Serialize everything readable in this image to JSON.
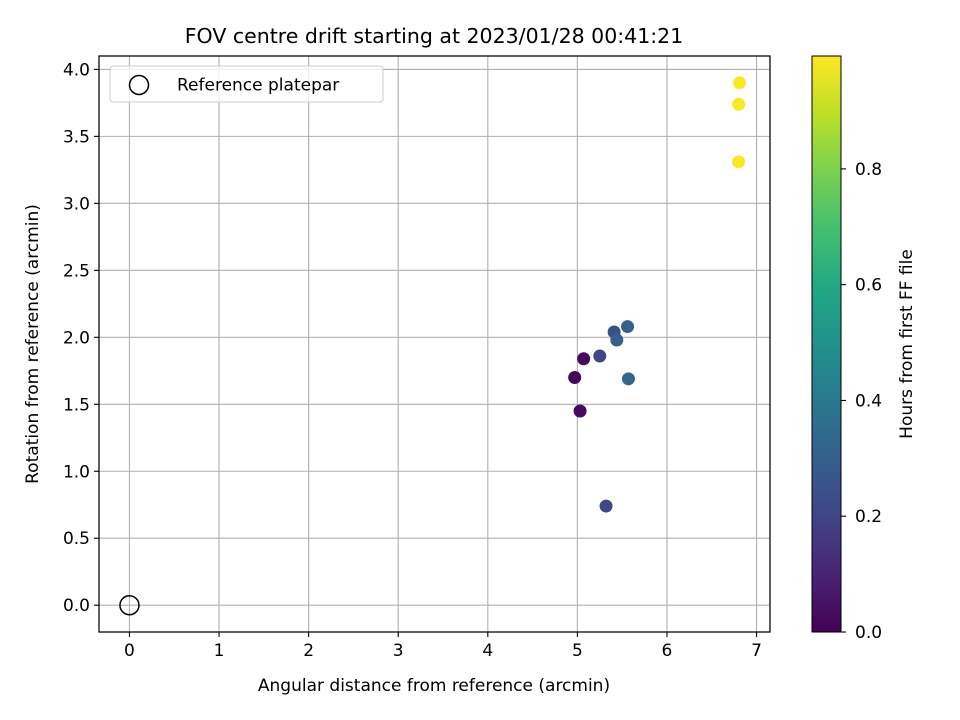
{
  "chart_data": {
    "type": "scatter",
    "title": "FOV centre drift starting at 2023/01/28 00:41:21",
    "xlabel": "Angular distance from reference (arcmin)",
    "ylabel": "Rotation from reference (arcmin)",
    "xlim": [
      -0.34,
      7.15
    ],
    "ylim": [
      -0.2,
      4.1
    ],
    "xticks": [
      "0",
      "1",
      "2",
      "3",
      "4",
      "5",
      "6",
      "7"
    ],
    "yticks": [
      "0.0",
      "0.5",
      "1.0",
      "1.5",
      "2.0",
      "2.5",
      "3.0",
      "3.5",
      "4.0"
    ],
    "grid": true,
    "legend": {
      "position": "upper-left",
      "entries": [
        {
          "label": "Reference platepar",
          "marker": "open-circle",
          "color": "#000000"
        }
      ]
    },
    "reference_point": {
      "x": 0.0,
      "y": 0.0
    },
    "points": [
      {
        "x": 5.07,
        "y": 1.84,
        "hours": 0.02
      },
      {
        "x": 4.97,
        "y": 1.7,
        "hours": 0.02
      },
      {
        "x": 5.03,
        "y": 1.45,
        "hours": 0.03
      },
      {
        "x": 5.25,
        "y": 1.86,
        "hours": 0.21
      },
      {
        "x": 5.32,
        "y": 0.74,
        "hours": 0.21
      },
      {
        "x": 5.41,
        "y": 2.04,
        "hours": 0.24
      },
      {
        "x": 5.44,
        "y": 1.98,
        "hours": 0.3
      },
      {
        "x": 5.56,
        "y": 2.08,
        "hours": 0.3
      },
      {
        "x": 5.57,
        "y": 1.69,
        "hours": 0.33
      },
      {
        "x": 6.81,
        "y": 3.9,
        "hours": 0.99
      },
      {
        "x": 6.8,
        "y": 3.74,
        "hours": 0.99
      },
      {
        "x": 6.8,
        "y": 3.31,
        "hours": 0.99
      }
    ],
    "colorbar": {
      "label": "Hours from first FF file",
      "colormap": "viridis",
      "range": [
        0.0,
        0.995
      ],
      "ticks": [
        "0.0",
        "0.2",
        "0.4",
        "0.6",
        "0.8"
      ]
    }
  }
}
